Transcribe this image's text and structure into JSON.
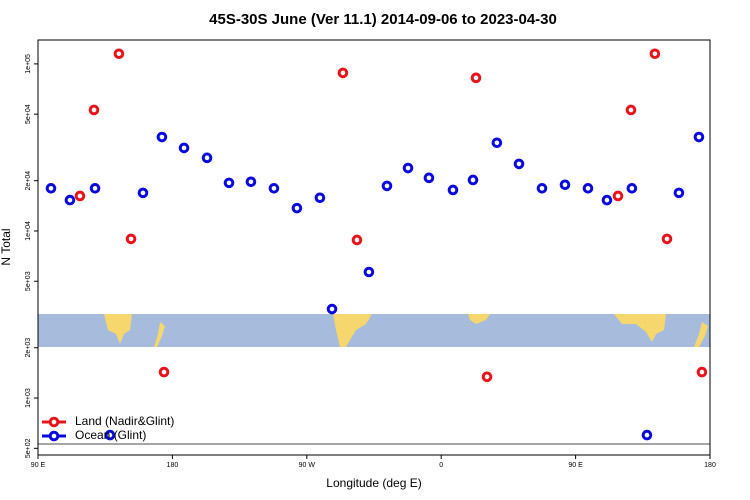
{
  "chart_data": {
    "type": "scatter",
    "title": "45S-30S June (Ver 11.1)   2014-09-06 to 2023-04-30",
    "x_label": "Longitude (deg E)",
    "y_label": "N Total",
    "xlim": [
      90,
      540
    ],
    "xticks": [
      {
        "value": 90,
        "label": "90 E"
      },
      180,
      {
        "value": 270,
        "label": "90 W"
      },
      {
        "value": 360,
        "label": "0"
      },
      {
        "value": 450,
        "label": "90 E"
      },
      {
        "value": 540,
        "label": "180"
      }
    ],
    "ylim": [
      456,
      139000
    ],
    "log_y": true,
    "yticks": [
      {
        "value": 500,
        "label": "5e+02"
      },
      {
        "value": 1000,
        "label": "1e+03"
      },
      {
        "value": 2000,
        "label": "2e+03"
      },
      {
        "value": 5000,
        "label": "5e+03"
      },
      {
        "value": 10000,
        "label": "1e+04"
      },
      {
        "value": 20000,
        "label": "2e+04"
      },
      {
        "value": 50000,
        "label": "5e+04"
      },
      {
        "value": 100000,
        "label": "1e+05"
      }
    ],
    "legend": "bottom-left",
    "series": [
      {
        "name": "Land (Nadir&Glint)",
        "color": "#e8141c",
        "x": [
          118.1,
          127.5,
          144.2,
          152.3,
          174.4,
          294.2,
          303.6,
          383.3,
          390.7,
          478.4,
          487.1,
          503.1,
          511.2,
          534.6
        ],
        "values": [
          16200,
          53000,
          115000,
          8960,
          1430,
          88300,
          8830,
          82500,
          1340,
          16200,
          53000,
          115000,
          8960,
          1430
        ]
      },
      {
        "name": "Ocean (Glint)",
        "color": "#0a0adc",
        "x": [
          98.7,
          111.4,
          128.2,
          138.2,
          160.3,
          173.0,
          187.8,
          203.2,
          217.9,
          232.6,
          248.0,
          263.4,
          278.8,
          286.9,
          311.6,
          323.7,
          337.8,
          351.8,
          367.9,
          381.3,
          397.3,
          412.1,
          427.5,
          442.9,
          458.3,
          471.0,
          487.7,
          497.8,
          519.2,
          532.6
        ],
        "values": [
          18000,
          15300,
          18000,
          600,
          16900,
          36500,
          31400,
          27400,
          19400,
          19700,
          18000,
          13700,
          15800,
          3410,
          5680,
          18600,
          23800,
          20800,
          17600,
          20200,
          33700,
          25200,
          18000,
          18900,
          18000,
          15300,
          18000,
          600,
          16900,
          36500
        ]
      }
    ]
  }
}
